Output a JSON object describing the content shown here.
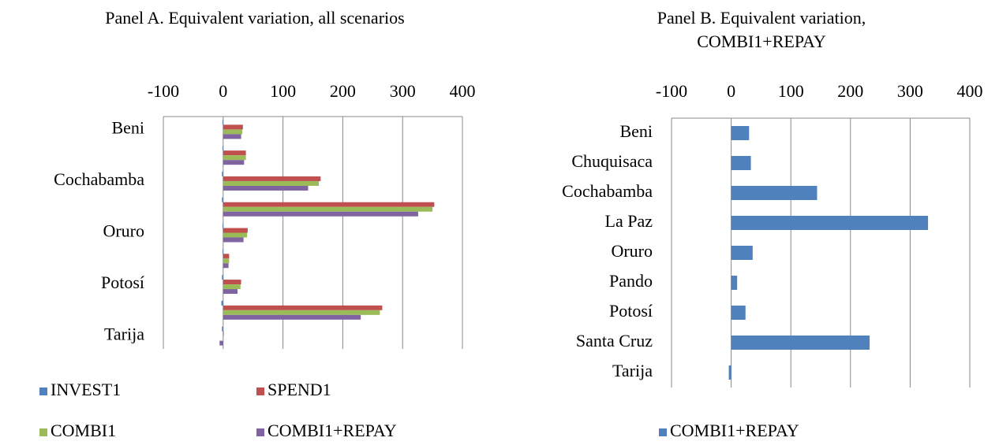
{
  "chart_data": [
    {
      "type": "bar",
      "orientation": "horizontal",
      "title": "Panel A. Equivalent variation, all scenarios",
      "categories": [
        "Beni",
        null,
        "Cochabamba",
        null,
        "Oruro",
        null,
        "Potosí",
        null,
        "Tarija"
      ],
      "series": [
        {
          "name": "INVEST1",
          "color": "#4f81bd",
          "values": [
            -1,
            -1,
            -2,
            -2,
            -1,
            -1,
            -2,
            -3,
            -2
          ]
        },
        {
          "name": "SPEND1",
          "color": "#c0504d",
          "values": [
            33,
            38,
            163,
            353,
            41,
            10,
            30,
            266,
            1
          ]
        },
        {
          "name": "COMBI1",
          "color": "#9bbb59",
          "values": [
            32,
            38,
            160,
            350,
            40,
            10,
            29,
            262,
            0
          ]
        },
        {
          "name": "COMBI1+REPAY",
          "color": "#8064a2",
          "values": [
            30,
            35,
            142,
            326,
            34,
            9,
            24,
            230,
            -6
          ]
        }
      ],
      "xlim": [
        -100,
        400
      ],
      "xticks": [
        -100,
        0,
        100,
        200,
        300,
        400
      ],
      "grid": true,
      "legend": "bottom"
    },
    {
      "type": "bar",
      "orientation": "horizontal",
      "title": "Panel B. Equivalent variation, COMBI1+REPAY",
      "categories": [
        "Beni",
        "Chuquisaca",
        "Cochabamba",
        "La Paz",
        "Oruro",
        "Pando",
        "Potosí",
        "Santa Cruz",
        "Tarija"
      ],
      "series": [
        {
          "name": "COMBI1+REPAY",
          "color": "#4f81bd",
          "values": [
            30,
            33,
            144,
            330,
            36,
            10,
            24,
            232,
            -4
          ]
        }
      ],
      "xlim": [
        -100,
        400
      ],
      "xticks": [
        -100,
        0,
        100,
        200,
        300,
        400
      ],
      "grid": true,
      "legend": "bottom"
    }
  ]
}
